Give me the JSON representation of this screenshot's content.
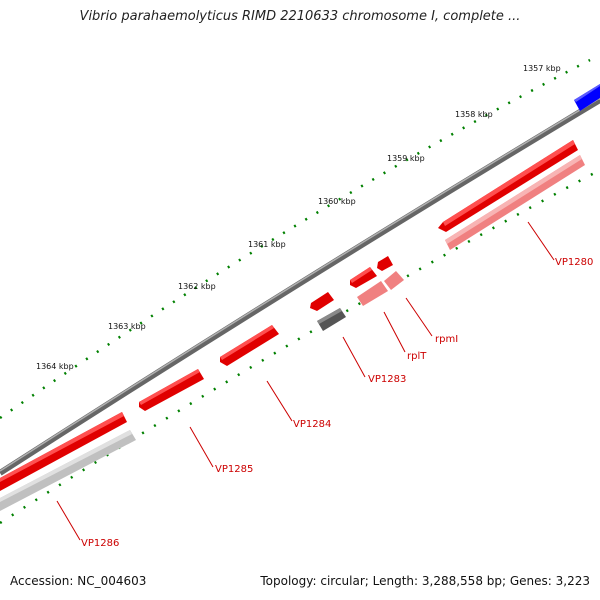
{
  "title": "Vibrio parahaemolyticus RIMD 2210633 chromosome I, complete ...",
  "footer": {
    "accession": "Accession: NC_004603",
    "summary": "Topology: circular; Length: 3,288,558 bp; Genes: 3,223"
  },
  "colors": {
    "backbone": "#7f7f7f",
    "gene_red": "#ff0000",
    "gene_light_red": "#f08080",
    "gene_gray": "#606060",
    "gene_light_gray": "#c8c8c8",
    "gene_blue": "#0000ff",
    "tick_green": "#008000",
    "label_red": "#cc0000"
  },
  "kbp_labels": [
    "1357 kbp",
    "1358 kbp",
    "1359 kbp",
    "1360 kbp",
    "1361 kbp",
    "1362 kbp",
    "1363 kbp",
    "1364 kbp"
  ],
  "gene_labels": [
    "VP1280",
    "rpmI",
    "rplT",
    "VP1283",
    "VP1284",
    "VP1285",
    "VP1286"
  ]
}
